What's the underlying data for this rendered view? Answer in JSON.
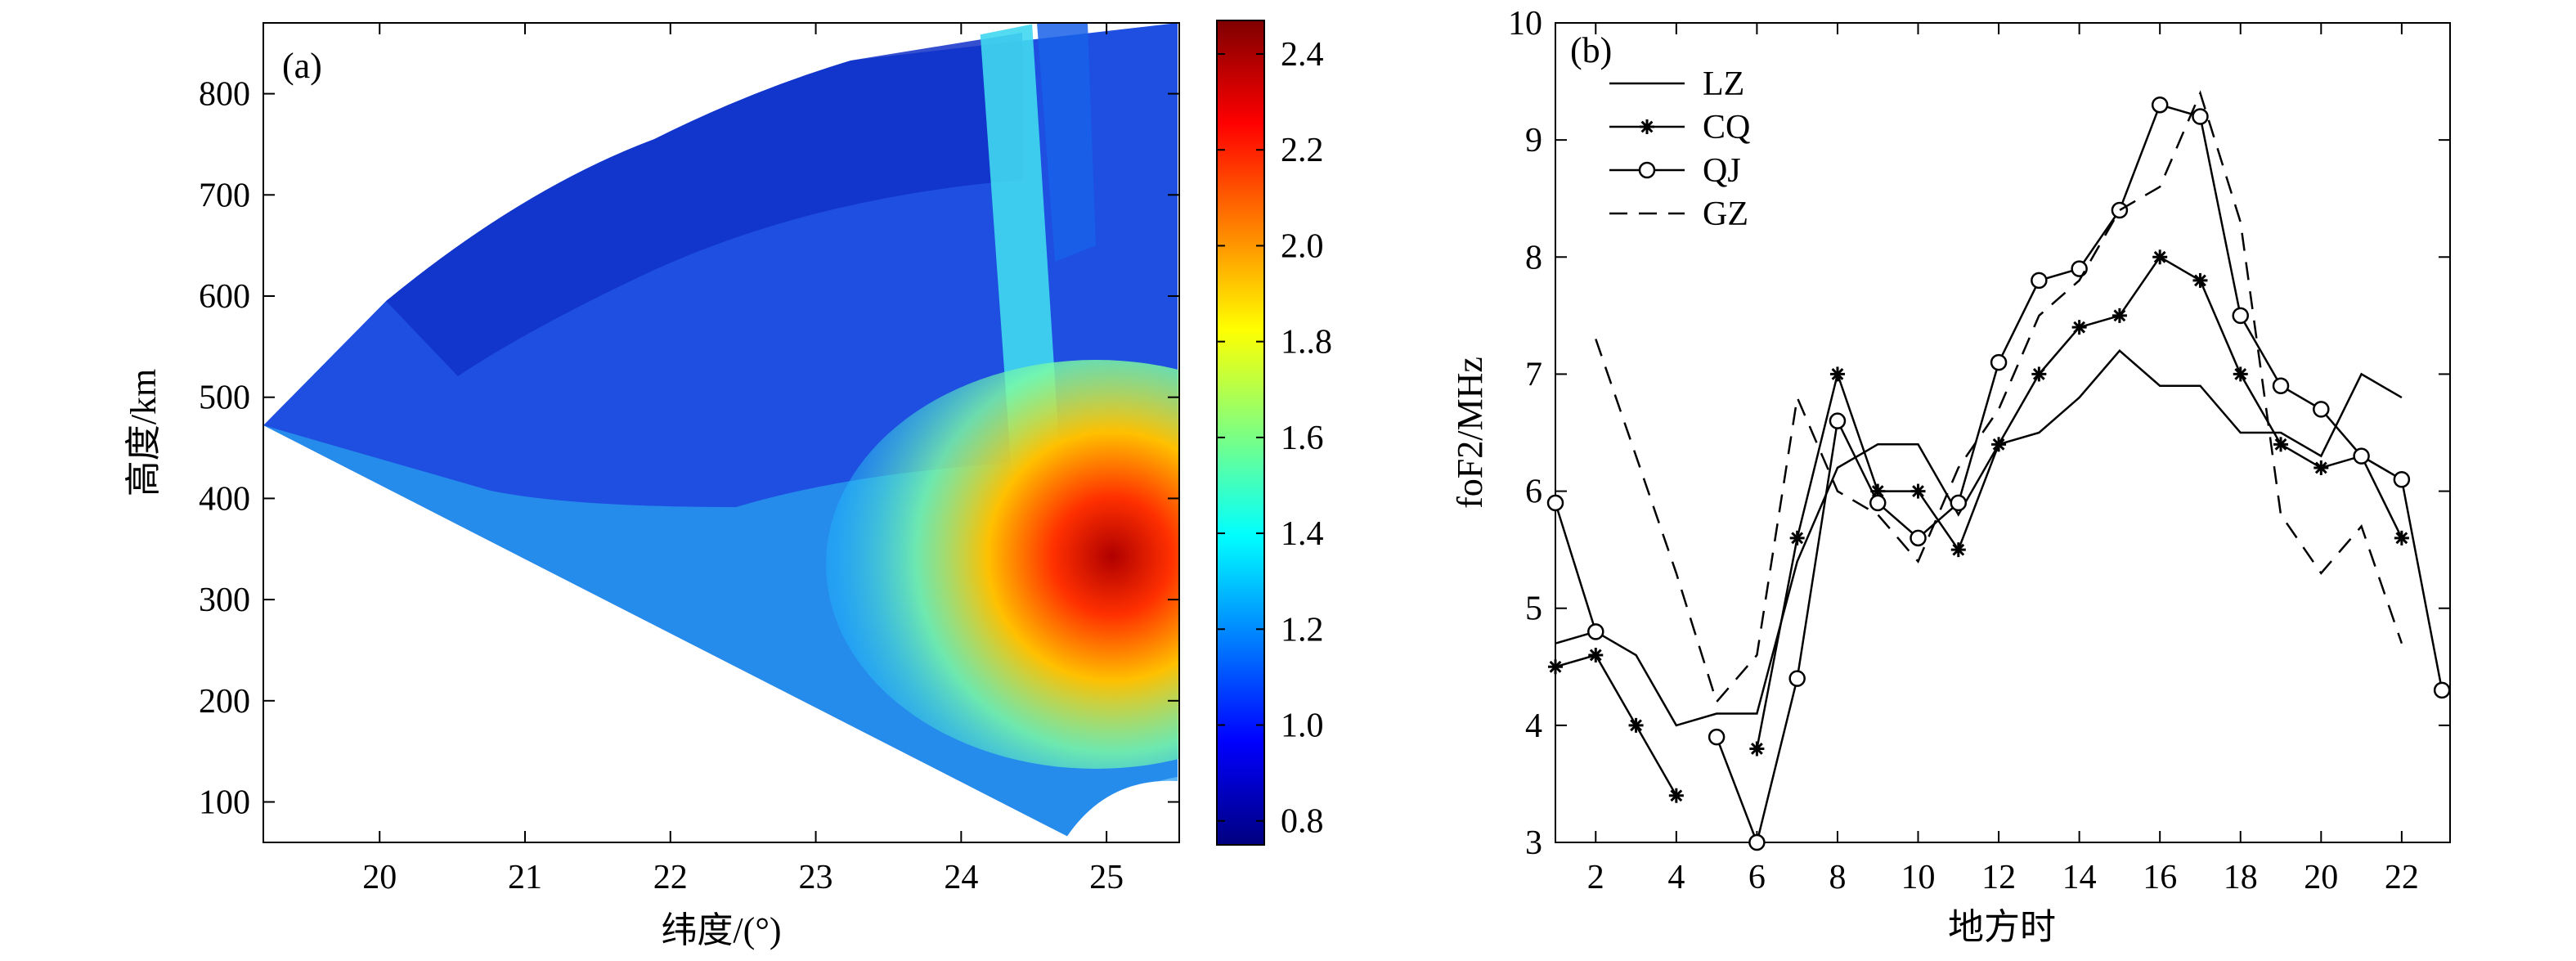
{
  "chart_data": [
    {
      "type": "heatmap",
      "panel_label": "(a)",
      "xlabel": "纬度/(°)",
      "ylabel": "高度/km",
      "xlim": [
        19.2,
        25.5
      ],
      "ylim": [
        60,
        870
      ],
      "x_ticks": [
        20,
        21,
        22,
        23,
        24,
        25
      ],
      "y_ticks": [
        100,
        200,
        300,
        400,
        500,
        600,
        700,
        800
      ],
      "colorbar": {
        "range": [
          0.75,
          2.47
        ],
        "ticks": [
          0.8,
          1.0,
          1.2,
          1.4,
          1.6,
          1.8,
          2.0,
          2.2,
          2.4
        ],
        "tick_labels": [
          "0.8",
          "1.0",
          "1.2",
          "1.4",
          "1.6",
          "1..8",
          "2.0",
          "2.2",
          "2.4"
        ],
        "colormap": "jet"
      },
      "regions": [
        {
          "region": "fan outer edge (upper-left)",
          "value": 0.82
        },
        {
          "region": "fan inner region",
          "value": 1.05
        },
        {
          "region": "lower ray band",
          "value": 1.25
        },
        {
          "region": "peak near lat 25, 350 km",
          "value": 2.4
        }
      ]
    },
    {
      "type": "line",
      "panel_label": "(b)",
      "xlabel": "地方时",
      "ylabel": "foF2/MHz",
      "xlim": [
        1,
        23.2
      ],
      "ylim": [
        3,
        10
      ],
      "x_ticks": [
        2,
        4,
        6,
        8,
        10,
        12,
        14,
        16,
        18,
        20,
        22
      ],
      "y_ticks": [
        3,
        4,
        5,
        6,
        7,
        8,
        9,
        10
      ],
      "legend_position": "top-left",
      "series": [
        {
          "name": "LZ",
          "style": "solid",
          "points": [
            [
              1,
              4.7
            ],
            [
              2,
              4.8
            ],
            [
              3,
              4.6
            ],
            [
              4,
              4.0
            ],
            [
              5,
              4.1
            ],
            [
              6,
              4.1
            ],
            [
              7,
              5.4
            ],
            [
              8,
              6.2
            ],
            [
              9,
              6.4
            ],
            [
              10,
              6.4
            ],
            [
              11,
              5.8
            ],
            [
              12,
              6.4
            ],
            [
              13,
              6.5
            ],
            [
              14,
              6.8
            ],
            [
              15,
              7.2
            ],
            [
              16,
              6.9
            ],
            [
              17,
              6.9
            ],
            [
              18,
              6.5
            ],
            [
              19,
              6.5
            ],
            [
              20,
              6.3
            ],
            [
              21,
              7.0
            ],
            [
              22,
              6.8
            ]
          ]
        },
        {
          "name": "CQ",
          "style": "solid-star",
          "points": [
            [
              1,
              4.5
            ],
            [
              2,
              4.6
            ],
            [
              3,
              4.0
            ],
            [
              4,
              3.4
            ],
            [
              null,
              null
            ],
            [
              6,
              3.8
            ],
            [
              7,
              5.6
            ],
            [
              8,
              7.0
            ],
            [
              9,
              6.0
            ],
            [
              10,
              6.0
            ],
            [
              11,
              5.5
            ],
            [
              12,
              6.4
            ],
            [
              13,
              7.0
            ],
            [
              14,
              7.4
            ],
            [
              15,
              7.5
            ],
            [
              16,
              8.0
            ],
            [
              17,
              7.8
            ],
            [
              18,
              7.0
            ],
            [
              19,
              6.4
            ],
            [
              20,
              6.2
            ],
            [
              21,
              6.3
            ],
            [
              22,
              5.6
            ]
          ]
        },
        {
          "name": "QJ",
          "style": "solid-circle",
          "points": [
            [
              1,
              5.9
            ],
            [
              2,
              4.8
            ],
            [
              null,
              null
            ],
            [
              5,
              3.9
            ],
            [
              6,
              3.0
            ],
            [
              7,
              4.4
            ],
            [
              8,
              6.6
            ],
            [
              9,
              5.9
            ],
            [
              10,
              5.6
            ],
            [
              11,
              5.9
            ],
            [
              12,
              7.1
            ],
            [
              13,
              7.8
            ],
            [
              14,
              7.9
            ],
            [
              15,
              8.4
            ],
            [
              16,
              9.3
            ],
            [
              17,
              9.2
            ],
            [
              18,
              7.5
            ],
            [
              19,
              6.9
            ],
            [
              20,
              6.7
            ],
            [
              21,
              6.3
            ],
            [
              22,
              6.1
            ],
            [
              23,
              4.3
            ]
          ]
        },
        {
          "name": "GZ",
          "style": "dashed",
          "points": [
            [
              2,
              7.3
            ],
            [
              3,
              6.3
            ],
            [
              4,
              5.3
            ],
            [
              5,
              4.2
            ],
            [
              6,
              4.6
            ],
            [
              7,
              6.8
            ],
            [
              8,
              6.0
            ],
            [
              9,
              5.8
            ],
            [
              10,
              5.4
            ],
            [
              11,
              6.2
            ],
            [
              12,
              6.7
            ],
            [
              13,
              7.5
            ],
            [
              14,
              7.8
            ],
            [
              15,
              8.4
            ],
            [
              16,
              8.6
            ],
            [
              17,
              9.4
            ],
            [
              18,
              8.3
            ],
            [
              19,
              5.8
            ],
            [
              20,
              5.3
            ],
            [
              21,
              5.7
            ],
            [
              22,
              4.7
            ]
          ]
        }
      ]
    }
  ]
}
